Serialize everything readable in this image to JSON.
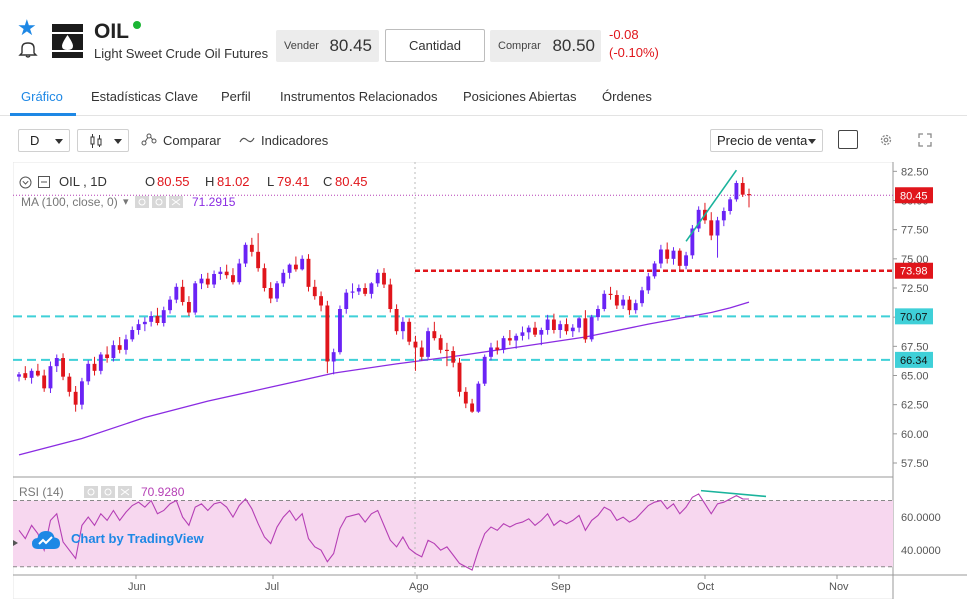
{
  "header": {
    "symbol": "OIL",
    "instrument_name": "Light Sweet Crude Oil Futures",
    "sell_label": "Vender",
    "sell_price": "80.45",
    "quantity_label": "Cantidad",
    "buy_label": "Comprar",
    "buy_price": "80.50",
    "change": "-0.08",
    "change_pct": "(-0.10%)"
  },
  "tabs": [
    "Gráfico",
    "Estadísticas Clave",
    "Perfil",
    "Instrumentos Relacionados",
    "Posiciones Abiertas",
    "Órdenes"
  ],
  "toolbar": {
    "interval": "D",
    "compare_label": "Comparar",
    "indicators_label": "Indicadores",
    "price_type": "Precio de venta"
  },
  "legend": {
    "symbol_interval": "OIL , 1D",
    "o_label": "O",
    "o_value": "80.55",
    "h_label": "H",
    "h_value": "81.02",
    "l_label": "L",
    "l_value": "79.41",
    "c_label": "C",
    "c_value": "80.45",
    "ma_label": "MA (100, close, 0)",
    "ma_value": "71.2915",
    "rsi_label": "RSI (14)",
    "rsi_value": "70.9280"
  },
  "branding": {
    "text": "Chart by TradingView"
  },
  "colors": {
    "up": "#6a23f5",
    "down": "#e0151b",
    "ma": "#8a2be2",
    "cyan": "#3fd0d8",
    "accent": "#1e88e5",
    "rsi_fill": "#f7d7ef",
    "rsi_line": "#b53fb5"
  },
  "chart_data": {
    "type": "candlestick",
    "y_ticks": [
      "82.50",
      "80.00",
      "77.50",
      "75.00",
      "72.50",
      "70.00",
      "67.50",
      "65.00",
      "62.50",
      "60.00",
      "57.50"
    ],
    "ylim": [
      56.3,
      83.3
    ],
    "x_ticks": [
      {
        "label": "Jun",
        "x": 33
      },
      {
        "label": "Jul",
        "x": 66
      },
      {
        "label": "Ago",
        "x": 99
      },
      {
        "label": "Sep",
        "x": 132
      },
      {
        "label": "Oct",
        "x": 165
      },
      {
        "label": "Nov",
        "x": 197
      }
    ],
    "price_labels": [
      {
        "value": 80.45,
        "text": "80.45",
        "style": "last"
      },
      {
        "value": 73.98,
        "text": "73.98",
        "style": "red"
      },
      {
        "value": 70.07,
        "text": "70.07",
        "style": "cyan"
      },
      {
        "value": 66.34,
        "text": "66.34",
        "style": "cyan"
      }
    ],
    "horizontal_lines": [
      {
        "value": 73.98,
        "style": "red-dashed",
        "from_x": 99
      },
      {
        "value": 70.07,
        "style": "cyan-dashed"
      },
      {
        "value": 66.34,
        "style": "cyan-dashed"
      }
    ],
    "candles": [
      [
        0,
        64.9,
        65.3,
        64.5,
        65.1
      ],
      [
        1,
        65.2,
        65.8,
        64.6,
        64.8
      ],
      [
        2,
        64.8,
        65.6,
        64.3,
        65.4
      ],
      [
        3,
        65.4,
        66.0,
        64.9,
        65.0
      ],
      [
        4,
        65.0,
        65.5,
        63.6,
        63.9
      ],
      [
        5,
        63.9,
        66.2,
        63.5,
        65.8
      ],
      [
        6,
        65.8,
        66.8,
        65.3,
        66.5
      ],
      [
        7,
        66.5,
        66.9,
        64.6,
        64.9
      ],
      [
        8,
        64.9,
        65.2,
        63.2,
        63.6
      ],
      [
        9,
        63.6,
        64.1,
        61.9,
        62.5
      ],
      [
        10,
        62.5,
        64.8,
        62.1,
        64.5
      ],
      [
        11,
        64.5,
        66.3,
        64.2,
        66.0
      ],
      [
        12,
        66.0,
        66.6,
        65.0,
        65.4
      ],
      [
        13,
        65.4,
        67.0,
        65.1,
        66.8
      ],
      [
        14,
        66.8,
        67.5,
        66.1,
        66.5
      ],
      [
        15,
        66.5,
        68.0,
        66.2,
        67.6
      ],
      [
        16,
        67.6,
        68.3,
        66.9,
        67.2
      ],
      [
        17,
        67.2,
        68.5,
        66.8,
        68.1
      ],
      [
        18,
        68.1,
        69.2,
        67.9,
        68.9
      ],
      [
        19,
        68.9,
        69.8,
        68.5,
        69.4
      ],
      [
        20,
        69.4,
        70.0,
        68.8,
        69.6
      ],
      [
        21,
        69.6,
        70.5,
        69.2,
        70.1
      ],
      [
        22,
        70.1,
        70.8,
        69.3,
        69.5
      ],
      [
        23,
        69.5,
        70.9,
        69.2,
        70.6
      ],
      [
        24,
        70.6,
        71.8,
        70.3,
        71.5
      ],
      [
        25,
        71.5,
        72.9,
        71.2,
        72.6
      ],
      [
        26,
        72.6,
        73.2,
        71.0,
        71.3
      ],
      [
        27,
        71.3,
        71.8,
        70.1,
        70.4
      ],
      [
        28,
        70.4,
        73.1,
        70.2,
        72.9
      ],
      [
        29,
        72.9,
        73.7,
        72.4,
        73.3
      ],
      [
        30,
        73.3,
        73.8,
        72.5,
        72.8
      ],
      [
        31,
        72.8,
        74.0,
        72.5,
        73.7
      ],
      [
        32,
        73.7,
        74.3,
        73.2,
        73.9
      ],
      [
        33,
        73.9,
        74.5,
        73.3,
        73.6
      ],
      [
        34,
        73.6,
        74.2,
        72.8,
        73.0
      ],
      [
        35,
        73.0,
        75.0,
        72.8,
        74.6
      ],
      [
        36,
        74.6,
        76.4,
        74.3,
        76.2
      ],
      [
        37,
        76.2,
        76.8,
        75.2,
        75.6
      ],
      [
        38,
        75.6,
        77.2,
        73.9,
        74.2
      ],
      [
        39,
        74.2,
        74.6,
        72.2,
        72.5
      ],
      [
        40,
        72.5,
        73.0,
        71.2,
        71.6
      ],
      [
        41,
        71.6,
        73.1,
        71.3,
        72.9
      ],
      [
        42,
        72.9,
        74.1,
        72.6,
        73.8
      ],
      [
        43,
        73.8,
        74.6,
        73.3,
        74.5
      ],
      [
        44,
        74.5,
        75.2,
        73.9,
        74.1
      ],
      [
        45,
        74.1,
        75.3,
        74.0,
        75.0
      ],
      [
        46,
        75.0,
        75.4,
        72.2,
        72.6
      ],
      [
        47,
        72.6,
        73.2,
        71.5,
        71.8
      ],
      [
        48,
        71.8,
        72.2,
        70.5,
        71.0
      ],
      [
        49,
        71.0,
        71.4,
        65.2,
        66.2
      ],
      [
        50,
        66.2,
        67.3,
        65.1,
        67.0
      ],
      [
        51,
        67.0,
        71.0,
        66.8,
        70.7
      ],
      [
        52,
        70.7,
        72.4,
        70.3,
        72.1
      ],
      [
        53,
        72.1,
        72.9,
        71.6,
        72.2
      ],
      [
        54,
        72.2,
        72.8,
        71.9,
        72.5
      ],
      [
        55,
        72.5,
        72.9,
        71.8,
        72.0
      ],
      [
        56,
        72.0,
        73.0,
        71.6,
        72.9
      ],
      [
        57,
        72.9,
        74.1,
        72.6,
        73.8
      ],
      [
        58,
        73.8,
        74.2,
        72.5,
        72.8
      ],
      [
        59,
        72.8,
        73.3,
        70.4,
        70.7
      ],
      [
        60,
        70.7,
        71.1,
        68.5,
        68.8
      ],
      [
        61,
        68.8,
        70.0,
        68.1,
        69.6
      ],
      [
        62,
        69.6,
        69.9,
        67.6,
        67.9
      ],
      [
        63,
        67.9,
        68.4,
        65.4,
        67.4
      ],
      [
        64,
        67.4,
        68.0,
        66.3,
        66.6
      ],
      [
        65,
        66.6,
        69.1,
        66.4,
        68.8
      ],
      [
        66,
        68.8,
        69.6,
        68.0,
        68.2
      ],
      [
        67,
        68.2,
        68.5,
        66.9,
        67.2
      ],
      [
        68,
        67.2,
        67.8,
        65.8,
        67.1
      ],
      [
        69,
        67.1,
        67.5,
        65.7,
        66.1
      ],
      [
        70,
        66.1,
        66.5,
        63.2,
        63.6
      ],
      [
        71,
        63.6,
        64.0,
        62.2,
        62.6
      ],
      [
        72,
        62.6,
        63.0,
        61.8,
        61.9
      ],
      [
        73,
        61.9,
        64.5,
        61.8,
        64.3
      ],
      [
        74,
        64.3,
        66.8,
        64.1,
        66.6
      ],
      [
        75,
        66.6,
        67.8,
        66.3,
        67.4
      ],
      [
        76,
        67.4,
        68.0,
        66.8,
        67.2
      ],
      [
        77,
        67.2,
        68.4,
        66.9,
        68.2
      ],
      [
        78,
        68.2,
        68.9,
        67.6,
        68.0
      ],
      [
        79,
        68.0,
        68.6,
        67.3,
        68.4
      ],
      [
        80,
        68.4,
        69.2,
        68.0,
        68.7
      ],
      [
        81,
        68.7,
        69.3,
        68.1,
        69.1
      ],
      [
        82,
        69.1,
        69.6,
        68.3,
        68.5
      ],
      [
        83,
        68.5,
        69.1,
        67.6,
        68.9
      ],
      [
        84,
        68.9,
        70.2,
        68.5,
        69.8
      ],
      [
        85,
        69.8,
        70.3,
        68.6,
        68.9
      ],
      [
        86,
        68.9,
        69.7,
        68.2,
        69.4
      ],
      [
        87,
        69.4,
        69.9,
        68.5,
        68.8
      ],
      [
        88,
        68.8,
        69.4,
        68.3,
        69.1
      ],
      [
        89,
        69.1,
        70.0,
        68.7,
        69.9
      ],
      [
        90,
        69.9,
        70.6,
        67.8,
        68.1
      ],
      [
        91,
        68.1,
        70.2,
        67.9,
        70.0
      ],
      [
        92,
        70.0,
        71.0,
        69.7,
        70.7
      ],
      [
        93,
        70.7,
        72.3,
        70.5,
        72.0
      ],
      [
        94,
        72.0,
        72.6,
        71.5,
        71.9
      ],
      [
        95,
        71.9,
        72.3,
        70.7,
        71.0
      ],
      [
        96,
        71.0,
        71.9,
        70.7,
        71.5
      ],
      [
        97,
        71.5,
        71.8,
        70.2,
        70.6
      ],
      [
        98,
        70.6,
        71.5,
        70.3,
        71.2
      ],
      [
        99,
        71.2,
        72.6,
        70.9,
        72.3
      ],
      [
        100,
        72.3,
        73.8,
        72.0,
        73.5
      ],
      [
        101,
        73.5,
        74.8,
        73.3,
        74.6
      ],
      [
        102,
        74.6,
        76.2,
        74.2,
        75.8
      ],
      [
        103,
        75.8,
        76.4,
        74.6,
        75.0
      ],
      [
        104,
        75.0,
        76.0,
        74.5,
        75.7
      ],
      [
        105,
        75.7,
        75.9,
        74.0,
        74.4
      ],
      [
        106,
        74.4,
        75.6,
        74.1,
        75.3
      ],
      [
        107,
        75.3,
        77.9,
        75.0,
        77.6
      ],
      [
        108,
        77.6,
        79.5,
        77.3,
        79.2
      ],
      [
        109,
        79.2,
        79.8,
        78.0,
        78.3
      ],
      [
        110,
        78.3,
        79.0,
        76.6,
        77.0
      ],
      [
        111,
        77.0,
        78.6,
        75.1,
        78.3
      ],
      [
        112,
        78.3,
        79.4,
        77.8,
        79.1
      ],
      [
        113,
        79.1,
        80.3,
        78.8,
        80.1
      ],
      [
        114,
        80.1,
        81.7,
        79.9,
        81.5
      ],
      [
        115,
        81.5,
        82.0,
        80.3,
        80.5
      ],
      [
        116,
        80.55,
        81.02,
        79.41,
        80.45
      ]
    ],
    "ma": [
      [
        0,
        58.2
      ],
      [
        10,
        59.6
      ],
      [
        20,
        61.4
      ],
      [
        30,
        62.8
      ],
      [
        40,
        64.0
      ],
      [
        50,
        65.2
      ],
      [
        60,
        66.0
      ],
      [
        70,
        66.7
      ],
      [
        80,
        67.5
      ],
      [
        90,
        68.3
      ],
      [
        100,
        69.4
      ],
      [
        106,
        70.0
      ],
      [
        110,
        70.4
      ],
      [
        113,
        70.8
      ],
      [
        116,
        71.29
      ]
    ],
    "rsi": {
      "label": "RSI (14)",
      "ylim": [
        25,
        80
      ],
      "y_ticks": [
        "60.0000",
        "40.0000"
      ],
      "bands": [
        70,
        30
      ],
      "values": [
        52,
        47,
        55,
        50,
        40,
        58,
        62,
        45,
        40,
        35,
        55,
        60,
        55,
        62,
        58,
        64,
        58,
        63,
        67,
        69,
        66,
        70,
        62,
        64,
        68,
        70,
        60,
        55,
        66,
        68,
        64,
        68,
        69,
        66,
        60,
        67,
        71,
        65,
        56,
        48,
        44,
        54,
        60,
        64,
        58,
        62,
        47,
        42,
        40,
        33,
        38,
        53,
        60,
        61,
        62,
        57,
        62,
        64,
        55,
        46,
        42,
        48,
        41,
        38,
        36,
        46,
        44,
        40,
        42,
        37,
        32,
        30,
        28,
        40,
        50,
        54,
        52,
        56,
        54,
        56,
        57,
        59,
        55,
        58,
        62,
        55,
        58,
        56,
        58,
        61,
        52,
        58,
        61,
        66,
        64,
        58,
        60,
        57,
        59,
        63,
        67,
        69,
        70,
        65,
        68,
        62,
        66,
        72,
        74,
        68,
        62,
        68,
        69,
        71,
        73,
        71,
        70.93
      ]
    }
  }
}
